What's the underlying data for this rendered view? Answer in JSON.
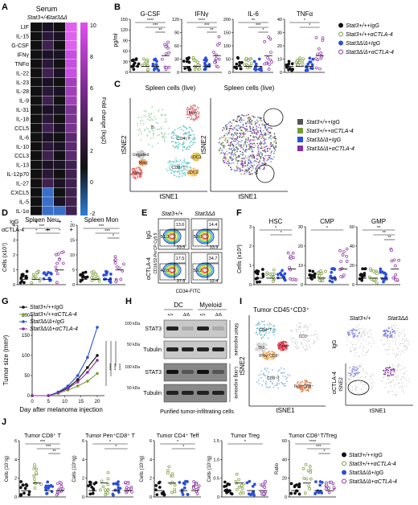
{
  "panels": {
    "A": {
      "letter": "A",
      "title": "Serum",
      "col_headers": [
        "Stat3+/+",
        "Stat3ΔΔ"
      ],
      "genes": [
        "LIF",
        "IL-15",
        "G-CSF",
        "IFNγ",
        "TNFα",
        "IL-22",
        "IL-23",
        "IL-28",
        "IL-9",
        "IL-31",
        "IL-18",
        "CCL5",
        "IL-6",
        "IL-10",
        "CCL3",
        "IL-13",
        "IL-12p70",
        "IL-27",
        "CXCL5",
        "IL-5",
        "IL-1α"
      ],
      "row_labels": [
        "IgG",
        "αCTLA-4"
      ],
      "row_marks": [
        [
          "+",
          "-",
          "+",
          "-"
        ],
        [
          "-",
          "+",
          "-",
          "+"
        ]
      ],
      "colorbar_label": "Fold change (log2)",
      "colorbar_ticks": [
        "10",
        "8",
        "6",
        "4",
        "2",
        "0",
        "-2"
      ]
    },
    "B": {
      "letter": "B",
      "ylabel": "pg/ml",
      "subplots": [
        {
          "title": "G-CSF",
          "ticks": [
            "0",
            "30",
            "60",
            "90",
            "120",
            "150"
          ],
          "sig": [
            "****",
            "***",
            "**"
          ]
        },
        {
          "title": "IFNγ",
          "ticks": [
            "0",
            "30",
            "60",
            "90",
            "120"
          ],
          "sig": [
            "****",
            "***",
            "**"
          ]
        },
        {
          "title": "IL-6",
          "ticks": [
            "0",
            "50",
            "100",
            "150",
            "200"
          ],
          "sig": [
            "**",
            "***",
            "*"
          ]
        },
        {
          "title": "TNFα",
          "ticks": [
            "0",
            "10",
            "20",
            "30",
            "40"
          ],
          "sig": [
            "*",
            "*"
          ]
        }
      ]
    },
    "C": {
      "letter": "C",
      "titles": [
        "Spleen cells (live)",
        "Spleen cells (live)"
      ],
      "xlabel": "tSNE1",
      "ylabel": "tSNE2",
      "clusters": [
        "B",
        "CD4⁺T",
        "CD8⁺T",
        "Mon",
        "Neu",
        "Ungated",
        "Mac",
        "cDC1",
        "cDC2"
      ]
    },
    "D": {
      "letter": "D",
      "ylabel": "Cells (x10⁷)",
      "subplots": [
        {
          "title": "Spleen Neu",
          "ticks": [
            "0",
            "1",
            "2",
            "3",
            "4"
          ],
          "sig": [
            "***",
            "***"
          ]
        },
        {
          "title": "Spleen Mon",
          "ticks": [
            "0",
            "5",
            "10",
            "15",
            "20"
          ],
          "sig": [
            "***",
            "***",
            "*"
          ]
        }
      ]
    },
    "E": {
      "letter": "E",
      "col_headers": [
        "Stat3+/+",
        "Stat3ΔΔ"
      ],
      "row_labels": [
        "IgG",
        "αCTLA-4"
      ],
      "ylabel": "CD16/32-PerCP-Cy5.5",
      "xlabel": "CD34-FITC",
      "gates": [
        [
          "13.6",
          "51.3",
          "33.5"
        ],
        [
          "14.4",
          "50.0",
          "33.9"
        ],
        [
          "17.5",
          "42.6",
          "37.5"
        ],
        [
          "34.7",
          "50.2",
          "12.4"
        ]
      ]
    },
    "F": {
      "letter": "F",
      "ylabel": "Cells (x10³)",
      "subplots": [
        {
          "title": "HSC",
          "ticks": [
            "0",
            "1",
            "2",
            "3"
          ],
          "sig": [
            "*",
            "*"
          ]
        },
        {
          "title": "CMP",
          "ticks": [
            "0",
            "10",
            "20",
            "30"
          ],
          "sig": [
            "*"
          ]
        },
        {
          "title": "GMP",
          "ticks": [
            "0",
            "20",
            "40",
            "60"
          ],
          "sig": [
            "**",
            "**",
            "**"
          ]
        }
      ]
    },
    "G": {
      "letter": "G",
      "xlabel": "Day after melanoma injection",
      "ylabel": "Tumor size (mm²)",
      "yticks": [
        "0",
        "50",
        "100",
        "150",
        "200"
      ],
      "xticks": [
        "0",
        "5",
        "10",
        "15",
        "20"
      ],
      "sig": [
        "****",
        "****",
        "****"
      ]
    },
    "H": {
      "letter": "H",
      "headers": [
        "DC",
        "Myeloid"
      ],
      "genotypes": [
        "+/+",
        "Δ/Δ",
        "+/+",
        "Δ/Δ"
      ],
      "bands": [
        {
          "label": "STAT3",
          "kda": "100 kDa"
        },
        {
          "label": "Tubulin",
          "kda": "50 kDa"
        },
        {
          "label": "STAT3",
          "kda": "100 kDa"
        },
        {
          "label": "Tubulin",
          "kda": "50 kDa"
        }
      ],
      "exposures": [
        "Short exposure",
        "Long exposure"
      ],
      "caption": "Purified tumor-infiltrating cells"
    },
    "I": {
      "letter": "I",
      "title": "Tumor CD45⁺CD3⁺",
      "clusters": [
        "CD4⁺T",
        "Th1",
        "IFNγ⁺CD8⁺",
        "Treg",
        "CD3⁺",
        "CD8⁺T",
        "Pen⁺CD8⁺"
      ],
      "xlabel": "tSNE1",
      "ylabel": "tSNE2",
      "col_headers": [
        "Stat3+/+",
        "Stat3ΔΔ"
      ],
      "row_labels": [
        "IgG",
        "αCTLA-4"
      ]
    },
    "J": {
      "letter": "J",
      "subplots": [
        {
          "title": "Tumor CD8⁺ T",
          "ylabel": "Cells (10⁷/g)",
          "ticks": [
            "0",
            "2",
            "4",
            "6"
          ],
          "sig": [
            "***",
            "***",
            "**"
          ]
        },
        {
          "title": "Tumor Pen⁺CD8⁺ T",
          "ylabel": "Cells (10⁵/g)",
          "ticks": [
            "0",
            "2",
            "4",
            "6"
          ],
          "sig": [
            "*",
            "*"
          ]
        },
        {
          "title": "Tumor CD4⁺ Teff",
          "ylabel": "Cells (10⁷/g)",
          "ticks": [
            "0",
            "2",
            "4",
            "6"
          ],
          "sig": [
            "*",
            "*"
          ]
        },
        {
          "title": "Tumor Treg",
          "ylabel": "Cells (10⁷/g)",
          "ticks": [
            "0",
            "0.5",
            "1.0",
            "1.5"
          ],
          "sig": [
            "*"
          ]
        },
        {
          "title": "Tumor CD8⁺T/Treg",
          "ylabel": "Ratio",
          "ticks": [
            "0",
            "20",
            "40",
            "60"
          ],
          "sig": [
            "****",
            "***",
            "*"
          ]
        }
      ]
    }
  },
  "legend": [
    {
      "label": "Stat3+/++IgG",
      "color": "#111111"
    },
    {
      "label": "Stat3+/++αCTLA-4",
      "color": "#7a9a3a"
    },
    {
      "label": "Stat3Δ/Δ+IgG",
      "color": "#2b4fd8"
    },
    {
      "label": "Stat3Δ/Δ+αCTLA-4",
      "color": "#8a2fa0"
    }
  ],
  "colors": {
    "black": "#111111",
    "green": "#7a9a3a",
    "blue": "#2b4fd8",
    "purple": "#8a2fa0"
  }
}
